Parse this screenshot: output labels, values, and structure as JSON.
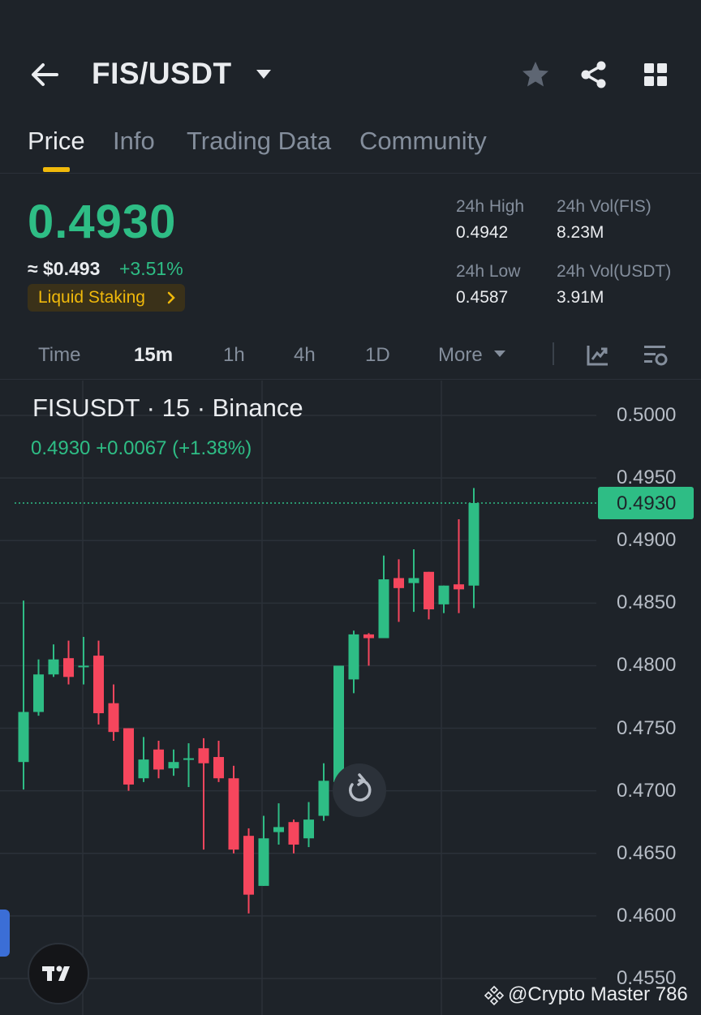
{
  "header": {
    "pair": "FIS/USDT",
    "icons": [
      "back-arrow-icon",
      "caret-down-icon",
      "star-icon",
      "share-icon",
      "grid-icon"
    ]
  },
  "tabs": [
    {
      "label": "Price",
      "active": true
    },
    {
      "label": "Info",
      "active": false
    },
    {
      "label": "Trading Data",
      "active": false
    },
    {
      "label": "Community",
      "active": false
    }
  ],
  "price": {
    "last": "0.4930",
    "usd": "≈ $0.493",
    "change_pct": "+3.51%",
    "tag": "Liquid Staking"
  },
  "stats": {
    "high_label": "24h High",
    "high_value": "0.4942",
    "low_label": "24h Low",
    "low_value": "0.4587",
    "vol_base_label": "24h Vol(FIS)",
    "vol_base_value": "8.23M",
    "vol_quote_label": "24h Vol(USDT)",
    "vol_quote_value": "3.91M"
  },
  "intervals": {
    "items": [
      "Time",
      "15m",
      "1h",
      "4h",
      "1D",
      "More"
    ],
    "active": "15m"
  },
  "chart": {
    "title": "FISUSDT · 15 · Binance",
    "summary": "0.4930  +0.0067 (+1.38%)",
    "last_price_label": "0.4930"
  },
  "watermark": "@Crypto Master 786",
  "colors": {
    "background": "#1e2329",
    "up": "#2ebd85",
    "down": "#f6465d",
    "accent": "#f0b90b"
  },
  "chart_data": {
    "type": "candlestick",
    "interval": "15m",
    "ylim": [
      0.455,
      0.5015
    ],
    "y_ticks": [
      "0.5000",
      "0.4950",
      "0.4900",
      "0.4850",
      "0.4800",
      "0.4750",
      "0.4700",
      "0.4650",
      "0.4600",
      "0.4550"
    ],
    "last_price": 0.493,
    "candles": [
      {
        "o": 0.4723,
        "h": 0.4852,
        "l": 0.4701,
        "c": 0.4763
      },
      {
        "o": 0.4763,
        "h": 0.4805,
        "l": 0.476,
        "c": 0.4793
      },
      {
        "o": 0.4793,
        "h": 0.4817,
        "l": 0.4791,
        "c": 0.4805
      },
      {
        "o": 0.4806,
        "h": 0.482,
        "l": 0.4785,
        "c": 0.4791
      },
      {
        "o": 0.4799,
        "h": 0.4823,
        "l": 0.4785,
        "c": 0.48
      },
      {
        "o": 0.4808,
        "h": 0.482,
        "l": 0.4753,
        "c": 0.4762
      },
      {
        "o": 0.477,
        "h": 0.4785,
        "l": 0.474,
        "c": 0.4747
      },
      {
        "o": 0.475,
        "h": 0.475,
        "l": 0.47,
        "c": 0.4705
      },
      {
        "o": 0.471,
        "h": 0.4743,
        "l": 0.4707,
        "c": 0.4725
      },
      {
        "o": 0.4733,
        "h": 0.474,
        "l": 0.471,
        "c": 0.4717
      },
      {
        "o": 0.4718,
        "h": 0.4733,
        "l": 0.4712,
        "c": 0.4723
      },
      {
        "o": 0.4725,
        "h": 0.4738,
        "l": 0.4703,
        "c": 0.4726
      },
      {
        "o": 0.4734,
        "h": 0.4742,
        "l": 0.4653,
        "c": 0.4722
      },
      {
        "o": 0.4727,
        "h": 0.474,
        "l": 0.4707,
        "c": 0.471
      },
      {
        "o": 0.471,
        "h": 0.472,
        "l": 0.465,
        "c": 0.4653
      },
      {
        "o": 0.4664,
        "h": 0.467,
        "l": 0.4602,
        "c": 0.4617
      },
      {
        "o": 0.4624,
        "h": 0.468,
        "l": 0.4624,
        "c": 0.4662
      },
      {
        "o": 0.4667,
        "h": 0.469,
        "l": 0.4657,
        "c": 0.4671
      },
      {
        "o": 0.4675,
        "h": 0.4677,
        "l": 0.465,
        "c": 0.4657
      },
      {
        "o": 0.4662,
        "h": 0.4691,
        "l": 0.4655,
        "c": 0.4677
      },
      {
        "o": 0.468,
        "h": 0.4722,
        "l": 0.4676,
        "c": 0.4708
      },
      {
        "o": 0.4707,
        "h": 0.48,
        "l": 0.4707,
        "c": 0.48
      },
      {
        "o": 0.4789,
        "h": 0.4828,
        "l": 0.4778,
        "c": 0.4825
      },
      {
        "o": 0.4825,
        "h": 0.4826,
        "l": 0.48,
        "c": 0.4822
      },
      {
        "o": 0.4822,
        "h": 0.4888,
        "l": 0.4822,
        "c": 0.4869
      },
      {
        "o": 0.487,
        "h": 0.4885,
        "l": 0.4835,
        "c": 0.4862
      },
      {
        "o": 0.4866,
        "h": 0.4893,
        "l": 0.4843,
        "c": 0.487
      },
      {
        "o": 0.4875,
        "h": 0.4875,
        "l": 0.4837,
        "c": 0.4845
      },
      {
        "o": 0.4849,
        "h": 0.4864,
        "l": 0.4842,
        "c": 0.4864
      },
      {
        "o": 0.4865,
        "h": 0.4917,
        "l": 0.4842,
        "c": 0.4861
      },
      {
        "o": 0.4864,
        "h": 0.4942,
        "l": 0.4846,
        "c": 0.493
      }
    ]
  }
}
